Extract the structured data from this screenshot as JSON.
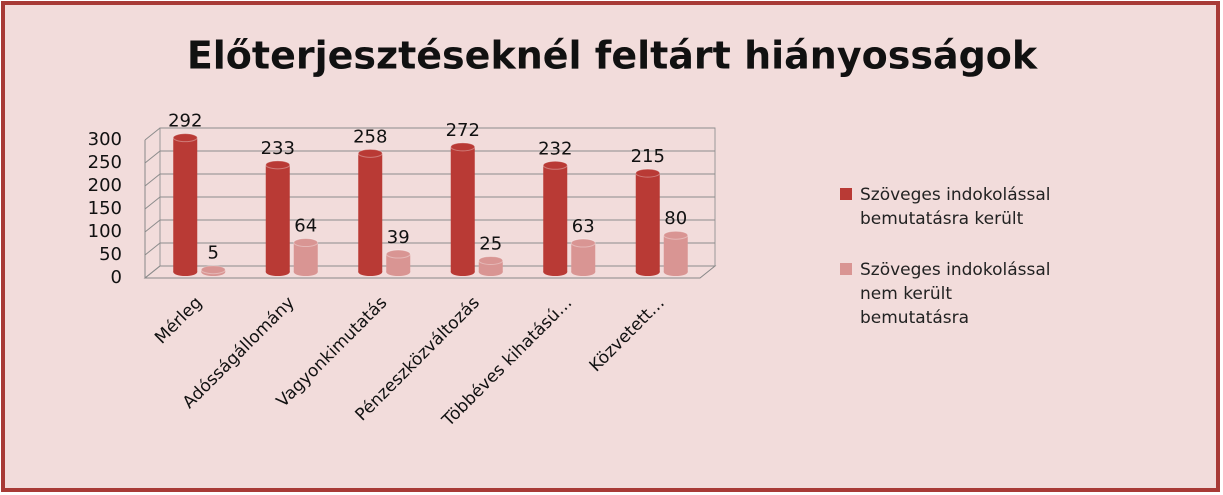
{
  "chart_data": {
    "type": "bar",
    "title": "Előterjesztéseknél feltárt hiányosságok",
    "categories": [
      "Mérleg",
      "Adósságállomány",
      "Vagyonkimutatás",
      "Pénzeszközváltozás",
      "Többéves kihatású…",
      "Közvetett…"
    ],
    "series": [
      {
        "name": "Szöveges indokolással bemutatásra került",
        "color": "#b93a35",
        "values": [
          292,
          233,
          258,
          272,
          232,
          215
        ]
      },
      {
        "name": "Szöveges indokolással nem került bemutatásra",
        "color": "#d99593",
        "values": [
          5,
          64,
          39,
          25,
          63,
          80
        ]
      }
    ],
    "ylim": [
      0,
      300
    ],
    "yticks": [
      0,
      50,
      100,
      150,
      200,
      250,
      300
    ],
    "grid": true,
    "legend": "right"
  }
}
